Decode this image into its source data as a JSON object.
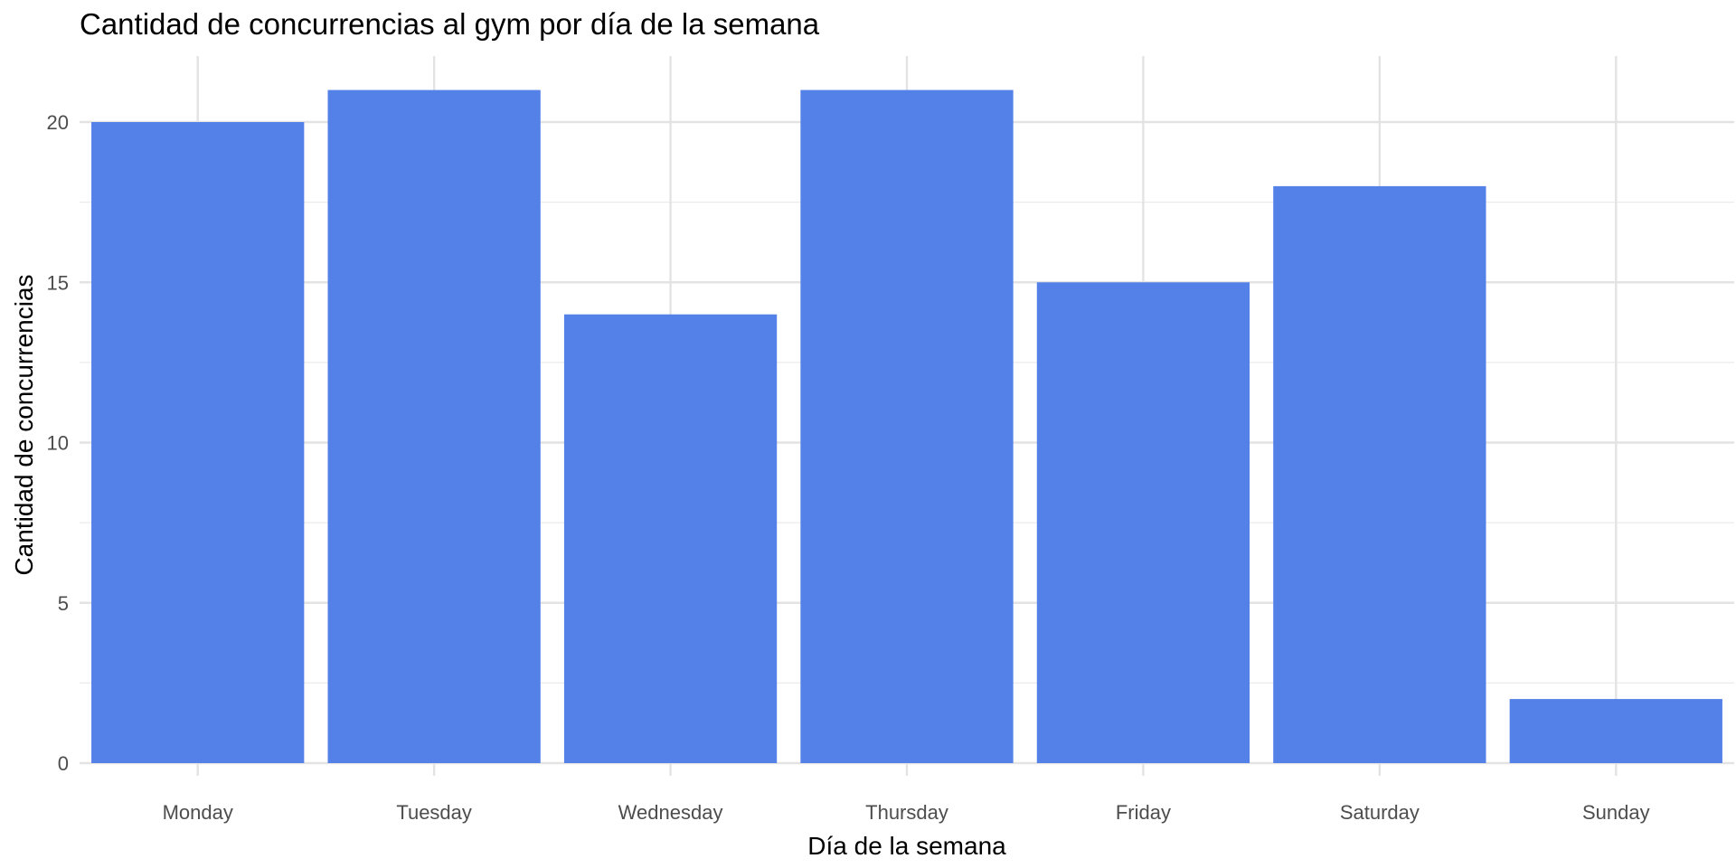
{
  "chart_data": {
    "type": "bar",
    "title": "Cantidad de concurrencias al gym por día de la semana",
    "xlabel": "Día de la semana",
    "ylabel": "Cantidad de concurrencias",
    "categories": [
      "Monday",
      "Tuesday",
      "Wednesday",
      "Thursday",
      "Friday",
      "Saturday",
      "Sunday"
    ],
    "values": [
      20,
      21,
      14,
      21,
      15,
      18,
      2
    ],
    "ylim": [
      0,
      22
    ],
    "yticks": [
      0,
      5,
      10,
      15,
      20
    ],
    "bar_color": "#5481e8",
    "grid": true,
    "legend": "none"
  }
}
